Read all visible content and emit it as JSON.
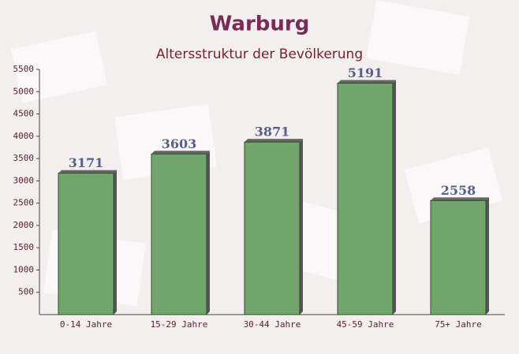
{
  "chart_data": {
    "type": "bar",
    "title": "Warburg",
    "subtitle": "Altersstruktur der Bevölkerung",
    "categories": [
      "0-14 Jahre",
      "15-29 Jahre",
      "30-44 Jahre",
      "45-59 Jahre",
      "75+ Jahre"
    ],
    "values": [
      3171,
      3603,
      3871,
      5191,
      2558
    ],
    "color": "#6aa063",
    "ylim": [
      0,
      5500
    ],
    "yticks": [
      500,
      1000,
      1500,
      2000,
      2500,
      3000,
      3500,
      4000,
      4500,
      5000,
      5500
    ]
  }
}
